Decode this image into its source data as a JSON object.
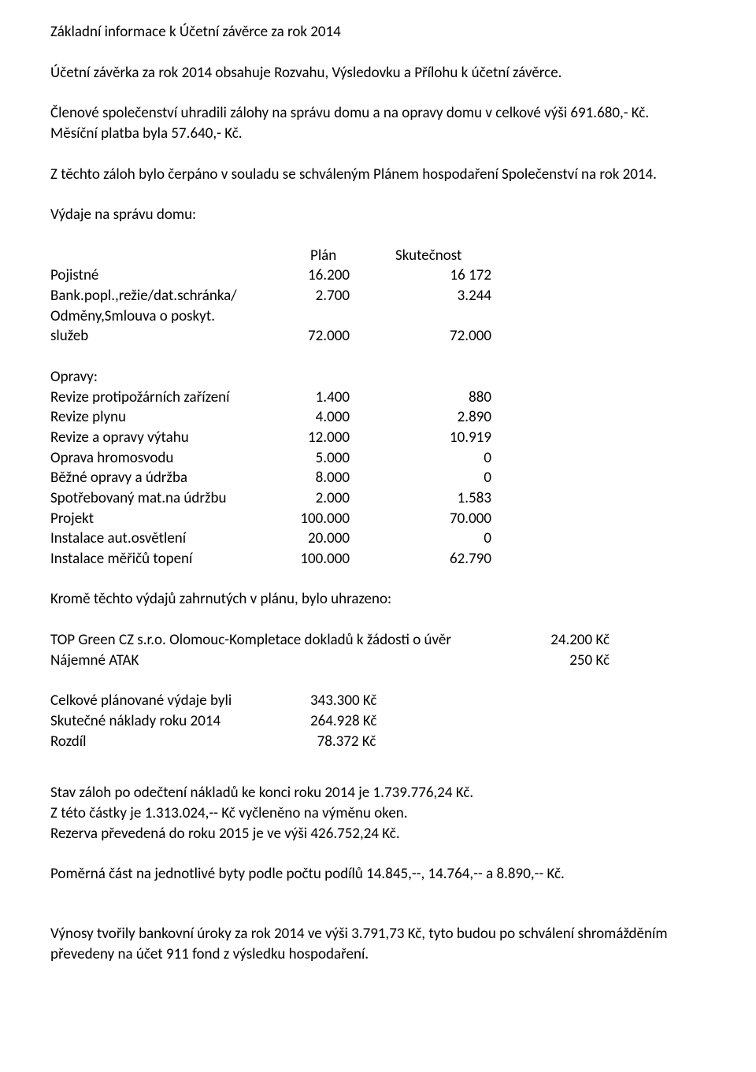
{
  "title": "Základní informace k Účetní závěrce za rok 2014",
  "p1": "Účetní závěrka za rok 2014  obsahuje  Rozvahu, Výsledovku a Přílohu k účetní závěrce.",
  "p2a": "Členové společenství  uhradili  zálohy na správu domu a na opravy domu v celkové výši 691.680,- Kč.",
  "p2b": "Měsíční platba  byla  57.640,- Kč.",
  "p3": "Z těchto záloh bylo čerpáno v souladu se schváleným  Plánem hospodaření  Společenství na rok 2014.",
  "p4": " Výdaje na správu domu:",
  "head_plan": "Plán",
  "head_actual": "Skutečnost",
  "rows1": [
    {
      "label": "Pojistné",
      "plan": "16.200",
      "actual": "16 172"
    },
    {
      "label": "Bank.popl.,režie/dat.schránka/",
      "plan": "2.700",
      "actual": "3.244"
    },
    {
      "label": "Odměny,Smlouva o poskyt.",
      "plan": "",
      "actual": ""
    },
    {
      "label": "služeb",
      "plan": "72.000",
      "actual": "72.000"
    }
  ],
  "opravy_head": "Opravy:",
  "rows2": [
    {
      "label": "Revize protipožárních zařízení",
      "plan": "1.400",
      "actual": "880"
    },
    {
      "label": "Revize plynu",
      "plan": "4.000",
      "actual": "2.890"
    },
    {
      "label": "Revize a opravy výtahu",
      "plan": "12.000",
      "actual": "10.919"
    },
    {
      "label": "Oprava hromosvodu",
      "plan": "5.000",
      "actual": "0"
    },
    {
      "label": "Běžné opravy a údržba",
      "plan": "8.000",
      "actual": "0"
    },
    {
      "label": "Spotřebovaný mat.na údržbu",
      "plan": "2.000",
      "actual": "1.583"
    },
    {
      "label": "Projekt",
      "plan": "100.000",
      "actual": "70.000"
    },
    {
      "label": "Instalace aut.osvětlení",
      "plan": "20.000",
      "actual": "0"
    },
    {
      "label": "Instalace měřičů topení",
      "plan": "100.000",
      "actual": "62.790"
    }
  ],
  "p5": "Kromě těchto výdajů zahrnutých v plánu, bylo uhrazeno:",
  "extra1_label": "TOP Green CZ s.r.o. Olomouc-Kompletace dokladů k žádosti o úvěr",
  "extra1_val": "24.200 Kč",
  "extra2_label": "Nájemné ATAK",
  "extra2_val": "250 Kč",
  "sum": [
    {
      "label": "Celkové plánované výdaje byli",
      "val": "343.300 Kč"
    },
    {
      "label": "Skutečné náklady roku 2014",
      "val": "264.928 Kč"
    },
    {
      "label": "Rozdíl",
      "val": "  78.372 Kč"
    }
  ],
  "p6a": "Stav záloh po odečtení nákladů  ke konci roku 2014 je  1.739.776,24 Kč.",
  "p6b": "Z této částky je 1.313.024,-- Kč vyčleněno na výměnu oken.",
  "p6c": "Rezerva převedená do roku 2015 je ve výši 426.752,24 Kč.",
  "p7": "Poměrná část na jednotlivé byty podle počtu podílů 14.845,--, 14.764,-- a 8.890,-- Kč.",
  "p8": "Výnosy tvořily bankovní úroky za rok 2014  ve výši 3.791,73 Kč, tyto budou po schválení shromážděním  převedeny na účet 911 fond z výsledku hospodaření."
}
